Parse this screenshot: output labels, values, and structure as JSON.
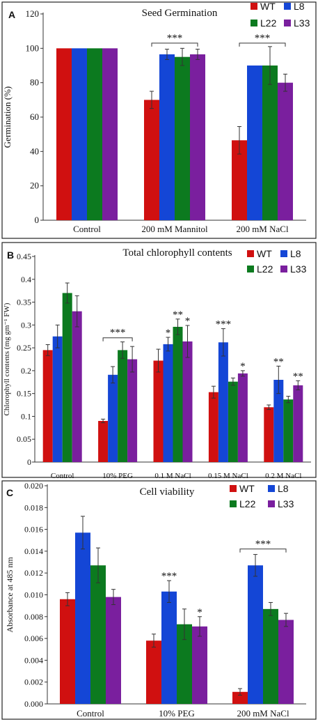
{
  "colors": {
    "WT": "#d01010",
    "L8": "#1446d6",
    "L22": "#0c7a1f",
    "L33": "#7a1f9e"
  },
  "chart_data": [
    {
      "type": "bar",
      "panel": "A",
      "title": "Seed Germination",
      "ylabel": "Germination (%)",
      "ylim": [
        0,
        120
      ],
      "yticks": [
        "0",
        "20",
        "40",
        "60",
        "80",
        "100",
        "120"
      ],
      "categories": [
        "Control",
        "200 mM Mannitol",
        "200 mM NaCl"
      ],
      "legend": [
        "WT",
        "L8",
        "L22",
        "L33"
      ],
      "series": [
        {
          "name": "WT",
          "values": [
            100,
            70,
            46.5
          ],
          "errors": [
            0,
            5,
            8
          ]
        },
        {
          "name": "L8",
          "values": [
            100,
            96.5,
            90
          ],
          "errors": [
            0,
            3,
            0
          ]
        },
        {
          "name": "L22",
          "values": [
            100,
            95,
            90
          ],
          "errors": [
            0,
            5,
            11
          ]
        },
        {
          "name": "L33",
          "values": [
            100,
            96.5,
            80
          ],
          "errors": [
            0,
            3,
            5
          ]
        }
      ],
      "annotations": [
        {
          "category": 1,
          "text": "***",
          "bracket": true,
          "level": 103
        },
        {
          "category": 2,
          "text": "***",
          "bracket": true,
          "level": 103
        }
      ]
    },
    {
      "type": "bar",
      "panel": "B",
      "title": "Total chlorophyll contents",
      "ylabel": "Chlorophyll contents (mg gm⁻¹ FW)",
      "ylim": [
        0,
        0.45
      ],
      "yticks": [
        "0",
        "0.05",
        "0.1",
        "0.15",
        "0.2",
        "0.25",
        "0.3",
        "0.35",
        "0.4",
        "0.45"
      ],
      "categories": [
        "Control",
        "10% PEG",
        "0.1 M NaCl",
        "0.15 M NaCl",
        "0.2 M NaCl"
      ],
      "legend": [
        "WT",
        "L8",
        "L22",
        "L33"
      ],
      "series": [
        {
          "name": "WT",
          "values": [
            0.245,
            0.09,
            0.222,
            0.153,
            0.12
          ],
          "errors": [
            0.012,
            0.004,
            0.025,
            0.013,
            0.005
          ]
        },
        {
          "name": "L8",
          "values": [
            0.275,
            0.191,
            0.258,
            0.262,
            0.18
          ],
          "errors": [
            0.025,
            0.018,
            0.015,
            0.03,
            0.03
          ]
        },
        {
          "name": "L22",
          "values": [
            0.37,
            0.245,
            0.296,
            0.176,
            0.137
          ],
          "errors": [
            0.022,
            0.018,
            0.017,
            0.008,
            0.007
          ]
        },
        {
          "name": "L33",
          "values": [
            0.33,
            0.225,
            0.264,
            0.194,
            0.168
          ],
          "errors": [
            0.034,
            0.028,
            0.035,
            0.006,
            0.01
          ]
        }
      ],
      "annotations": [
        {
          "category": 1,
          "text": "***",
          "bracket": true,
          "level": 0.272
        },
        {
          "category": 2,
          "series": 1,
          "text": "*"
        },
        {
          "category": 2,
          "series": 2,
          "text": "**"
        },
        {
          "category": 2,
          "series": 3,
          "text": "*"
        },
        {
          "category": 3,
          "series": 1,
          "text": "***"
        },
        {
          "category": 3,
          "series": 3,
          "text": "*"
        },
        {
          "category": 4,
          "series": 1,
          "text": "**"
        },
        {
          "category": 4,
          "series": 3,
          "text": "**"
        }
      ]
    },
    {
      "type": "bar",
      "panel": "C",
      "title": "Cell viability",
      "ylabel": "Absorbance at 485 nm",
      "ylim": [
        0,
        0.02
      ],
      "yticks": [
        "0.000",
        "0.002",
        "0.004",
        "0.006",
        "0.008",
        "0.010",
        "0.012",
        "0.014",
        "0.016",
        "0.018",
        "0.020"
      ],
      "categories": [
        "Control",
        "10% PEG",
        "200 mM NaCl"
      ],
      "legend": [
        "WT",
        "L8",
        "L22",
        "L33"
      ],
      "series": [
        {
          "name": "WT",
          "values": [
            0.0096,
            0.0058,
            0.0011
          ],
          "errors": [
            0.0006,
            0.0006,
            0.0003
          ]
        },
        {
          "name": "L8",
          "values": [
            0.0157,
            0.0103,
            0.0127
          ],
          "errors": [
            0.0015,
            0.001,
            0.001
          ]
        },
        {
          "name": "L22",
          "values": [
            0.0127,
            0.0073,
            0.0087
          ],
          "errors": [
            0.0016,
            0.0014,
            0.0006
          ]
        },
        {
          "name": "L33",
          "values": [
            0.0098,
            0.0071,
            0.0077
          ],
          "errors": [
            0.0007,
            0.0009,
            0.0006
          ]
        }
      ],
      "annotations": [
        {
          "category": 1,
          "series": 1,
          "text": "***"
        },
        {
          "category": 1,
          "series": 3,
          "text": "*"
        },
        {
          "category": 2,
          "text": "***",
          "bracket": true,
          "level": 0.0142
        }
      ]
    }
  ]
}
